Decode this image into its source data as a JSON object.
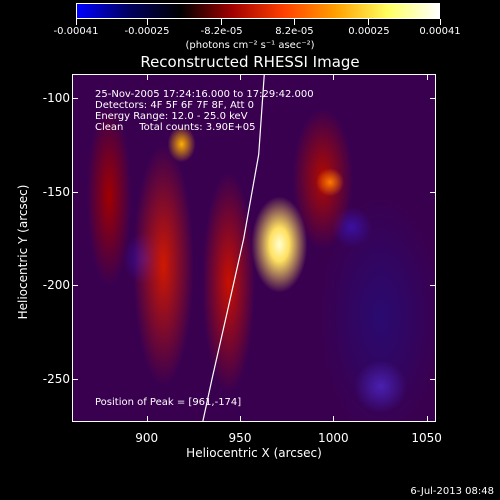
{
  "colorbar": {
    "tick_labels": [
      "-0.00041",
      "-0.00025",
      "-8.2e-05",
      "8.2e-05",
      "0.00025",
      "0.00041"
    ],
    "values": [
      -0.00041,
      -0.00025,
      -8.2e-05,
      8.2e-05,
      0.00025,
      0.00041
    ],
    "range": [
      -0.00041,
      0.00041
    ],
    "colors": [
      "#0000ff",
      "#000060",
      "#000000",
      "#a00000",
      "#ff4000",
      "#ffa000",
      "#ffff60",
      "#ffffff"
    ],
    "unit_label": "(photons cm⁻² s⁻¹ asec⁻²)"
  },
  "chart_data": {
    "type": "heatmap",
    "title": "Reconstructed RHESSI Image",
    "xlabel": "Heliocentric X (arcsec)",
    "ylabel": "Heliocentric Y (arcsec)",
    "xlim": [
      860,
      1055
    ],
    "ylim": [
      -273,
      -87
    ],
    "x_ticks": [
      "900",
      "950",
      "1000",
      "1050"
    ],
    "x_tick_values": [
      900,
      950,
      1000,
      1050
    ],
    "y_ticks": [
      "-100",
      "-150",
      "-200",
      "-250"
    ],
    "y_tick_values": [
      -100,
      -150,
      -200,
      -250
    ],
    "peak": {
      "x": 961,
      "y": -174
    },
    "limb": [
      [
        963,
        -87
      ],
      [
        960,
        -130
      ],
      [
        952,
        -175
      ],
      [
        943,
        -215
      ],
      [
        935,
        -250
      ],
      [
        930,
        -273
      ]
    ],
    "grid": false,
    "info_lines": [
      "25-Nov-2005 17:24:16.000 to 17:29:42.000",
      "Detectors: 4F 5F 6F 7F 8F, Att 0",
      "Energy Range: 12.0 - 25.0 keV",
      "Clean     Total counts: 3.90E+05"
    ],
    "peak_label": "Position of Peak = [961,-174]"
  },
  "footer": {
    "date": "6-Jul-2013 08:48"
  }
}
